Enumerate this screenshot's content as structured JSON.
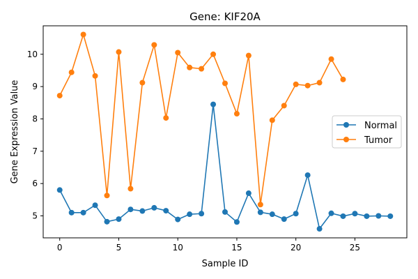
{
  "chart_data": {
    "type": "line",
    "title": "Gene: KIF20A",
    "xlabel": "Sample ID",
    "ylabel": "Gene Expression Value",
    "xlim": [
      -1.4,
      29.4
    ],
    "ylim": [
      4.32,
      10.88
    ],
    "xticks": [
      0,
      5,
      10,
      15,
      20,
      25
    ],
    "yticks": [
      5,
      6,
      7,
      8,
      9,
      10
    ],
    "grid": false,
    "legend_position": "center-right",
    "series": [
      {
        "name": "Normal",
        "color": "#1f77b4",
        "marker": "circle",
        "x": [
          0,
          1,
          2,
          3,
          4,
          5,
          6,
          7,
          8,
          9,
          10,
          11,
          12,
          13,
          14,
          15,
          16,
          17,
          18,
          19,
          20,
          21,
          22,
          23,
          24,
          25,
          26,
          27,
          28
        ],
        "y": [
          5.8,
          5.1,
          5.1,
          5.33,
          4.82,
          4.9,
          5.2,
          5.15,
          5.25,
          5.16,
          4.89,
          5.05,
          5.07,
          8.45,
          5.12,
          4.81,
          5.7,
          5.11,
          5.05,
          4.9,
          5.07,
          6.26,
          4.6,
          5.08,
          4.99,
          5.07,
          4.99,
          5.0,
          4.99
        ]
      },
      {
        "name": "Tumor",
        "color": "#ff7f0e",
        "marker": "circle",
        "x": [
          0,
          1,
          2,
          3,
          4,
          5,
          6,
          7,
          8,
          9,
          10,
          11,
          12,
          13,
          14,
          15,
          16,
          17,
          18,
          19,
          20,
          21,
          22,
          23,
          24
        ],
        "y": [
          8.72,
          9.44,
          10.61,
          9.33,
          5.63,
          10.07,
          5.84,
          9.12,
          10.29,
          8.03,
          10.05,
          9.59,
          9.55,
          10.0,
          9.1,
          8.16,
          9.96,
          5.35,
          7.96,
          8.41,
          9.07,
          9.03,
          9.12,
          9.85,
          9.22
        ]
      }
    ]
  }
}
